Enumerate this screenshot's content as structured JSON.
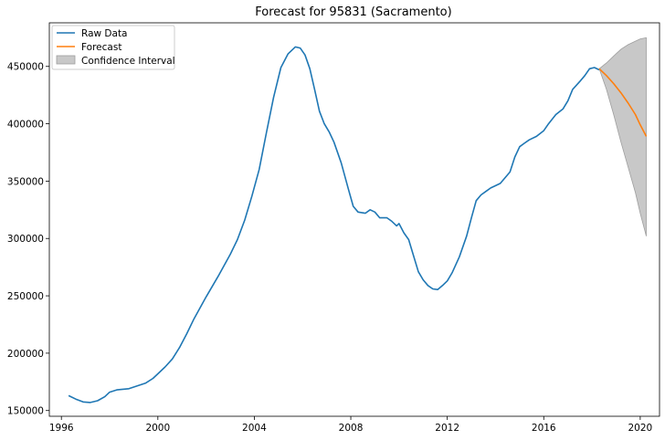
{
  "chart_data": {
    "type": "line",
    "title": "Forecast for 95831 (Sacramento)",
    "xlabel": "",
    "ylabel": "",
    "xlim": [
      1995.5,
      2020.8
    ],
    "ylim": [
      145000,
      488000
    ],
    "x_ticks": [
      1996,
      2000,
      2004,
      2008,
      2012,
      2016,
      2020
    ],
    "x_tick_labels": [
      "1996",
      "2000",
      "2004",
      "2008",
      "2012",
      "2016",
      "2020"
    ],
    "y_ticks": [
      150000,
      200000,
      250000,
      300000,
      350000,
      400000,
      450000
    ],
    "y_tick_labels": [
      "150000",
      "200000",
      "250000",
      "300000",
      "350000",
      "400000",
      "450000"
    ],
    "grid": false,
    "legend": {
      "position": "top-left",
      "entries": [
        "Raw Data",
        "Forecast",
        "Confidence Interval"
      ]
    },
    "colors": {
      "raw": "#1f77b4",
      "forecast": "#ff7f0e",
      "ci_fill": "#c8c8c8",
      "ci_edge": "#9e9e9e"
    },
    "series": [
      {
        "name": "Raw Data",
        "points": [
          [
            1996.3,
            163000
          ],
          [
            1996.6,
            160000
          ],
          [
            1996.9,
            157500
          ],
          [
            1997.2,
            157000
          ],
          [
            1997.5,
            158500
          ],
          [
            1997.8,
            162000
          ],
          [
            1998.0,
            166000
          ],
          [
            1998.3,
            168000
          ],
          [
            1998.8,
            169000
          ],
          [
            1999.0,
            170500
          ],
          [
            1999.5,
            174000
          ],
          [
            1999.8,
            178000
          ],
          [
            2000.0,
            182000
          ],
          [
            2000.3,
            188000
          ],
          [
            2000.6,
            195000
          ],
          [
            2000.9,
            205000
          ],
          [
            2001.2,
            217000
          ],
          [
            2001.5,
            230000
          ],
          [
            2002.0,
            249000
          ],
          [
            2002.5,
            267000
          ],
          [
            2003.0,
            286000
          ],
          [
            2003.3,
            299000
          ],
          [
            2003.6,
            316000
          ],
          [
            2003.9,
            337000
          ],
          [
            2004.2,
            360000
          ],
          [
            2004.5,
            392000
          ],
          [
            2004.8,
            423000
          ],
          [
            2005.1,
            449000
          ],
          [
            2005.4,
            461000
          ],
          [
            2005.7,
            467000
          ],
          [
            2005.9,
            466000
          ],
          [
            2006.1,
            460000
          ],
          [
            2006.3,
            448000
          ],
          [
            2006.5,
            430000
          ],
          [
            2006.7,
            411000
          ],
          [
            2006.9,
            400000
          ],
          [
            2007.1,
            393000
          ],
          [
            2007.3,
            384000
          ],
          [
            2007.6,
            366000
          ],
          [
            2007.9,
            343000
          ],
          [
            2008.1,
            328000
          ],
          [
            2008.3,
            323000
          ],
          [
            2008.6,
            322000
          ],
          [
            2008.8,
            325000
          ],
          [
            2009.0,
            323000
          ],
          [
            2009.2,
            318000
          ],
          [
            2009.5,
            318000
          ],
          [
            2009.7,
            315000
          ],
          [
            2009.9,
            311000
          ],
          [
            2010.0,
            313000
          ],
          [
            2010.2,
            305000
          ],
          [
            2010.4,
            299000
          ],
          [
            2010.6,
            285000
          ],
          [
            2010.8,
            271000
          ],
          [
            2011.0,
            264000
          ],
          [
            2011.2,
            259000
          ],
          [
            2011.4,
            256000
          ],
          [
            2011.6,
            255500
          ],
          [
            2011.8,
            259000
          ],
          [
            2012.0,
            263000
          ],
          [
            2012.2,
            270000
          ],
          [
            2012.5,
            284000
          ],
          [
            2012.8,
            302000
          ],
          [
            2013.0,
            318000
          ],
          [
            2013.2,
            333000
          ],
          [
            2013.4,
            338000
          ],
          [
            2013.6,
            341000
          ],
          [
            2013.8,
            344000
          ],
          [
            2014.0,
            346000
          ],
          [
            2014.2,
            348000
          ],
          [
            2014.4,
            353000
          ],
          [
            2014.6,
            358000
          ],
          [
            2014.8,
            371000
          ],
          [
            2015.0,
            380000
          ],
          [
            2015.2,
            383000
          ],
          [
            2015.4,
            386000
          ],
          [
            2015.7,
            389000
          ],
          [
            2016.0,
            394000
          ],
          [
            2016.2,
            400000
          ],
          [
            2016.5,
            408000
          ],
          [
            2016.8,
            413000
          ],
          [
            2017.0,
            420000
          ],
          [
            2017.2,
            430000
          ],
          [
            2017.5,
            437000
          ],
          [
            2017.7,
            442000
          ],
          [
            2017.9,
            448000
          ],
          [
            2018.1,
            449000
          ],
          [
            2018.3,
            447000
          ]
        ]
      },
      {
        "name": "Forecast",
        "points": [
          [
            2018.3,
            448000
          ],
          [
            2018.6,
            442000
          ],
          [
            2018.9,
            435000
          ],
          [
            2019.2,
            427000
          ],
          [
            2019.5,
            418000
          ],
          [
            2019.8,
            408000
          ],
          [
            2020.0,
            399000
          ],
          [
            2020.25,
            389000
          ]
        ]
      }
    ],
    "confidence_interval": {
      "x": [
        2018.3,
        2018.6,
        2018.9,
        2019.2,
        2019.5,
        2019.8,
        2020.0,
        2020.25
      ],
      "upper": [
        448000,
        453000,
        459000,
        465000,
        469000,
        472000,
        474000,
        475000
      ],
      "lower": [
        448000,
        430000,
        408000,
        384000,
        362000,
        340000,
        322000,
        302000
      ]
    }
  }
}
